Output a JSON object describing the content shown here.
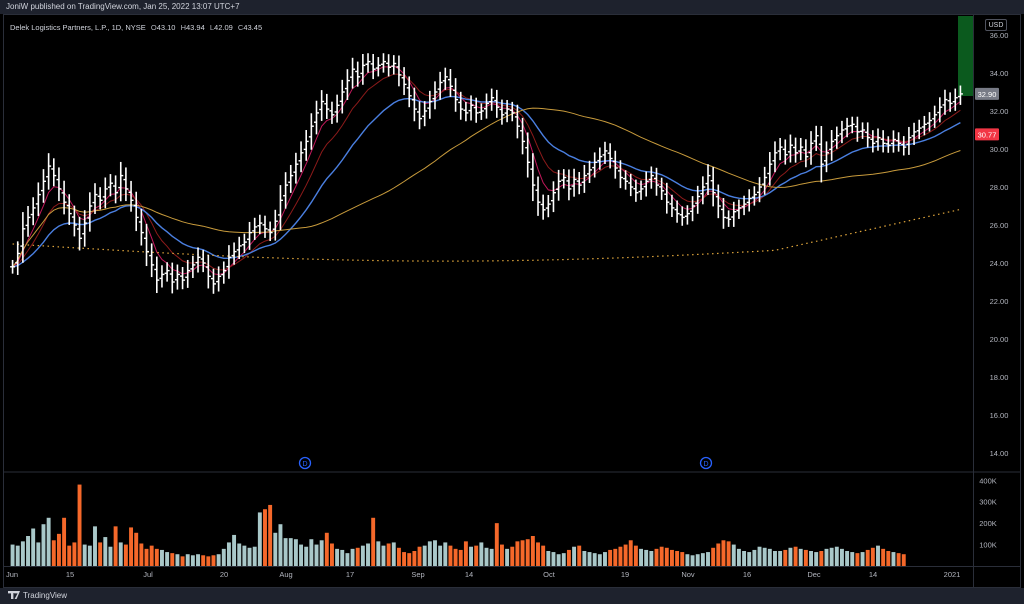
{
  "header": {
    "published": "JoniW published on TradingView.com, Jan 25, 2022 13:07 UTC+7"
  },
  "legend": {
    "symbol": "Delek Logistics Partners, L.P., 1D, NYSE",
    "o_key": "O",
    "o": "43.10",
    "h_key": "H",
    "h": "43.94",
    "l_key": "L",
    "l": "42.09",
    "c_key": "C",
    "c": "43.45"
  },
  "currency": "USD",
  "footer": {
    "brand": "TradingView"
  },
  "colors": {
    "up": "#ffffff",
    "price_badge": "#f23645",
    "ma_fast": "#c2185b",
    "ma_dark": "#8b1a1a",
    "ma_mid": "#4a7fe0",
    "ma_slow": "#c89b3c",
    "ma_200": "#e0a63c",
    "vol_up": "#a9c8c9",
    "vol_down": "#f5682a",
    "dividend": "#2962ff",
    "highlight": "#0b5a1e"
  },
  "icons": {
    "dividend": "circled-d-icon"
  },
  "chart_data": {
    "type": "ohlc-bar",
    "x_labels": [
      "Jun",
      "15",
      "Jul",
      "20",
      "Aug",
      "17",
      "Sep",
      "14",
      "Oct",
      "19",
      "Nov",
      "16",
      "Dec",
      "14",
      "2021"
    ],
    "y_ticks": [
      "36.00",
      "34.00",
      "32.00",
      "30.00",
      "28.00",
      "26.00",
      "24.00",
      "22.00",
      "20.00",
      "18.00",
      "16.00",
      "14.00"
    ],
    "ylim": [
      13,
      37
    ],
    "price_labels": {
      "grey": "32.90",
      "red": "30.77"
    },
    "dividends": [
      {
        "label": "D"
      },
      {
        "label": "D"
      }
    ],
    "volume": {
      "ticks": [
        "400K",
        "300K",
        "200K",
        "100K"
      ],
      "ylim": [
        0,
        420000
      ]
    },
    "closes": [
      23.8,
      24.5,
      25.8,
      26.4,
      26.9,
      27.6,
      28.3,
      29.1,
      28.6,
      27.9,
      27.2,
      26.6,
      26.0,
      25.3,
      26.1,
      27.0,
      27.6,
      27.3,
      27.9,
      28.2,
      27.7,
      28.6,
      27.9,
      27.3,
      26.4,
      25.6,
      24.6,
      23.9,
      23.1,
      23.4,
      23.6,
      23.0,
      23.4,
      23.1,
      23.6,
      23.9,
      24.3,
      24.0,
      23.3,
      22.9,
      23.3,
      23.6,
      24.3,
      24.6,
      24.9,
      25.1,
      25.6,
      25.9,
      26.1,
      25.8,
      25.6,
      26.2,
      27.3,
      28.1,
      28.6,
      29.2,
      29.8,
      30.4,
      31.2,
      31.9,
      32.5,
      32.1,
      31.8,
      32.3,
      33.0,
      33.6,
      34.2,
      33.8,
      34.4,
      34.6,
      34.2,
      34.4,
      34.6,
      34.3,
      34.5,
      33.9,
      33.4,
      32.8,
      32.1,
      31.6,
      32.0,
      32.5,
      33.0,
      33.5,
      33.8,
      33.3,
      32.6,
      32.1,
      31.9,
      32.3,
      31.9,
      32.0,
      32.4,
      32.7,
      32.2,
      31.8,
      32.1,
      31.9,
      31.2,
      30.4,
      29.3,
      28.1,
      27.2,
      26.8,
      27.1,
      27.7,
      28.3,
      28.5,
      27.9,
      28.4,
      28.1,
      28.6,
      28.9,
      29.3,
      29.6,
      29.9,
      29.5,
      29.0,
      28.5,
      28.3,
      28.0,
      27.7,
      27.9,
      28.3,
      28.6,
      28.1,
      27.8,
      27.2,
      26.9,
      26.6,
      26.4,
      26.6,
      27.0,
      27.5,
      28.0,
      28.6,
      27.7,
      27.0,
      26.4,
      26.3,
      26.7,
      26.9,
      27.1,
      27.4,
      27.6,
      28.0,
      28.5,
      29.2,
      29.8,
      30.1,
      29.7,
      30.2,
      29.8,
      30.1,
      29.6,
      30.3,
      30.7,
      29.2,
      29.8,
      30.4,
      30.7,
      31.0,
      31.2,
      31.3,
      30.9,
      31.0,
      30.6,
      30.3,
      30.6,
      30.3,
      30.2,
      30.5,
      30.3,
      30.1,
      30.6,
      30.9,
      31.1,
      31.3,
      31.5,
      31.8,
      32.2,
      32.6,
      32.4,
      32.7,
      32.9
    ],
    "volumes": [
      100000,
      95000,
      115000,
      140000,
      175000,
      110000,
      195000,
      225000,
      120000,
      150000,
      225000,
      95000,
      110000,
      380000,
      100000,
      95000,
      185000,
      110000,
      135000,
      90000,
      185000,
      110000,
      100000,
      180000,
      155000,
      105000,
      80000,
      95000,
      80000,
      75000,
      65000,
      60000,
      55000,
      45000,
      55000,
      50000,
      55000,
      50000,
      45000,
      50000,
      55000,
      80000,
      110000,
      145000,
      105000,
      95000,
      85000,
      90000,
      250000,
      265000,
      285000,
      155000,
      195000,
      130000,
      130000,
      125000,
      100000,
      90000,
      125000,
      100000,
      120000,
      155000,
      105000,
      80000,
      75000,
      60000,
      80000,
      85000,
      95000,
      105000,
      225000,
      115000,
      95000,
      105000,
      110000,
      85000,
      65000,
      60000,
      70000,
      90000,
      95000,
      115000,
      120000,
      95000,
      110000,
      95000,
      80000,
      75000,
      115000,
      90000,
      95000,
      110000,
      85000,
      80000,
      200000,
      100000,
      80000,
      90000,
      115000,
      120000,
      125000,
      140000,
      110000,
      95000,
      70000,
      65000,
      55000,
      60000,
      75000,
      90000,
      95000,
      70000,
      65000,
      60000,
      55000,
      65000,
      75000,
      80000,
      90000,
      100000,
      120000,
      95000,
      80000,
      75000,
      70000,
      80000,
      90000,
      85000,
      75000,
      70000,
      65000,
      55000,
      50000,
      55000,
      60000,
      65000,
      85000,
      105000,
      120000,
      115000,
      100000,
      80000,
      70000,
      65000,
      75000,
      90000,
      85000,
      80000,
      70000,
      70000,
      75000,
      85000,
      90000,
      80000,
      75000,
      70000,
      65000,
      70000,
      80000,
      85000,
      90000,
      80000,
      70000,
      65000,
      60000,
      65000,
      75000,
      85000,
      95000,
      80000,
      70000,
      65000,
      60000,
      55000
    ]
  }
}
